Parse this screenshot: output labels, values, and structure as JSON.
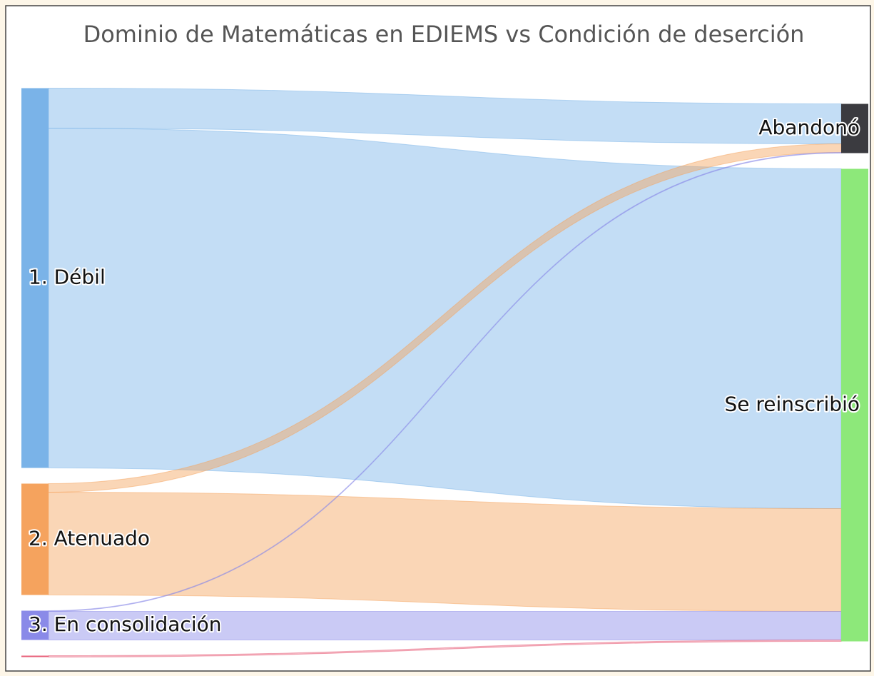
{
  "chart_data": {
    "type": "sankey",
    "title": "Dominio de Matemáticas en EDIEMS vs Condición de deserción",
    "nodes": [
      {
        "name": "1. Débil",
        "color": "#7ab3e8",
        "column": 0
      },
      {
        "name": "2. Atenuado",
        "color": "#f5a35e",
        "column": 0
      },
      {
        "name": "3. En consolidación",
        "color": "#8a8ae8",
        "column": 0
      },
      {
        "name": null,
        "color": "#e8607a",
        "column": 0
      },
      {
        "name": "Abandonó",
        "color": "#3b3b40",
        "column": 1
      },
      {
        "name": "Se reinscribió",
        "color": "#8de87a",
        "column": 1
      }
    ],
    "links": [
      {
        "source": 0,
        "target": 4,
        "value": 56
      },
      {
        "source": 0,
        "target": 5,
        "value": 476
      },
      {
        "source": 1,
        "target": 4,
        "value": 12
      },
      {
        "source": 1,
        "target": 5,
        "value": 144
      },
      {
        "source": 2,
        "target": 4,
        "value": 1
      },
      {
        "source": 2,
        "target": 5,
        "value": 40
      },
      {
        "source": 3,
        "target": 5,
        "value": 2
      }
    ]
  }
}
